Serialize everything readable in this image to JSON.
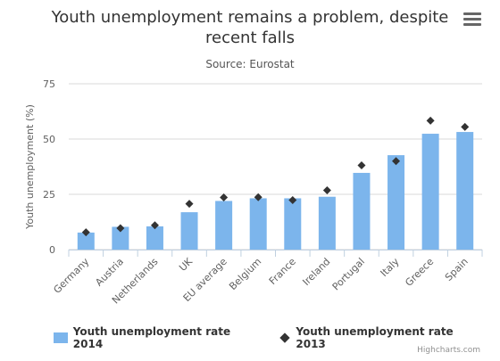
{
  "title": "Youth unemployment remains a problem, despite recent falls",
  "subtitle": "Source: Eurostat",
  "credits": "Highcharts.com",
  "menu_icon": "hamburger-menu-icon",
  "colors": {
    "bar": "#7cb5ec",
    "marker": "#333333",
    "grid": "#d8d8d8",
    "axis_text": "#606060"
  },
  "chart_data": {
    "type": "bar",
    "title": "Youth unemployment remains a problem, despite recent falls",
    "subtitle": "Source: Eurostat",
    "xlabel": "",
    "ylabel": "Youth unemployment (%)",
    "ylim": [
      0,
      75
    ],
    "yticks": [
      0,
      25,
      50,
      75
    ],
    "grid": true,
    "legend_position": "bottom",
    "categories": [
      "Germany",
      "Austria",
      "Netherlands",
      "UK",
      "EU average",
      "Belgium",
      "France",
      "Ireland",
      "Portugal",
      "Italy",
      "Greece",
      "Spain"
    ],
    "series": [
      {
        "name": "Youth unemployment rate 2014",
        "type": "bar",
        "color": "#7cb5ec",
        "values": [
          7.7,
          10.3,
          10.5,
          16.9,
          22.0,
          23.2,
          23.2,
          23.9,
          34.7,
          42.7,
          52.4,
          53.2
        ]
      },
      {
        "name": "Youth unemployment rate 2013",
        "type": "scatter",
        "marker": "diamond",
        "color": "#333333",
        "values": [
          7.8,
          9.7,
          11.0,
          20.7,
          23.6,
          23.7,
          22.4,
          26.8,
          38.1,
          40.0,
          58.3,
          55.5
        ]
      }
    ]
  }
}
